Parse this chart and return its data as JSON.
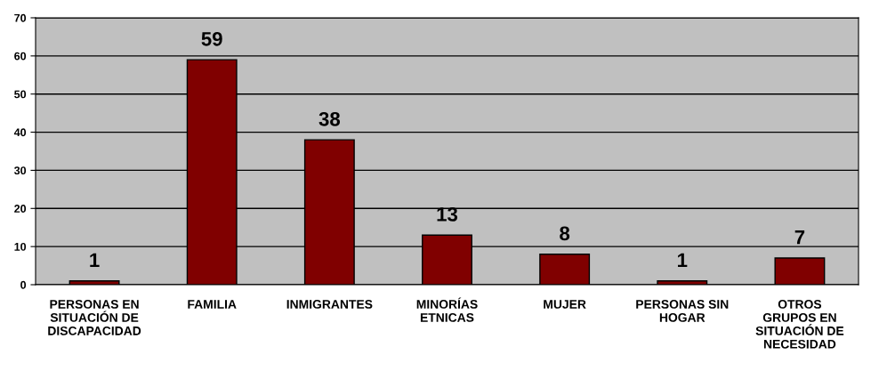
{
  "chart_data": {
    "type": "bar",
    "categories": [
      "PERSONAS EN\nSITUACIÓN DE\nDISCAPACIDAD",
      "FAMILIA",
      "INMIGRANTES",
      "MINORÍAS\nETNICAS",
      "MUJER",
      "PERSONAS SIN\nHOGAR",
      "OTROS\nGRUPOS EN\nSITUACIÓN DE\nNECESIDAD"
    ],
    "values": [
      1,
      59,
      38,
      13,
      8,
      1,
      7
    ],
    "color": "#800000",
    "ylim": [
      0,
      70
    ],
    "yticks": [
      0,
      10,
      20,
      30,
      40,
      50,
      60,
      70
    ],
    "grid": "y",
    "data_labels": true,
    "legend": false
  }
}
